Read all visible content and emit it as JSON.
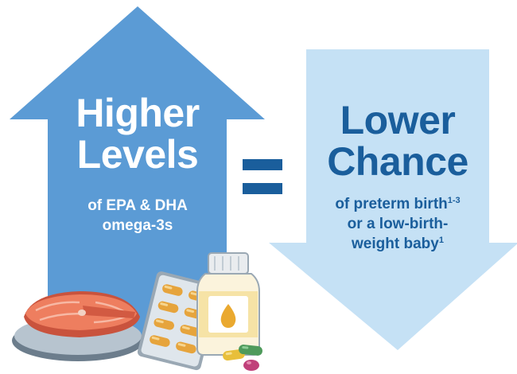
{
  "left": {
    "headline_line1": "Higher",
    "headline_line2": "Levels",
    "sub_line1": "of EPA & DHA",
    "sub_line2": "omega-3s"
  },
  "right": {
    "headline_line1": "Lower",
    "headline_line2": "Chance",
    "sub_line1": "of preterm birth",
    "sub_line1_ref": "1-3",
    "sub_line2": "or a low-birth-",
    "sub_line3": "weight baby",
    "sub_line3_ref": "1"
  },
  "colors": {
    "up_arrow": "#5b9bd5",
    "down_arrow": "#c5e1f5",
    "equals": "#1a5e9c",
    "right_text": "#1a5e9c",
    "left_text": "#ffffff"
  },
  "icons": {
    "salmon": "salmon-steak-icon",
    "capsule_pack": "capsule-blister-pack-icon",
    "bottle": "supplement-bottle-icon",
    "pills": "loose-capsules-icon"
  }
}
